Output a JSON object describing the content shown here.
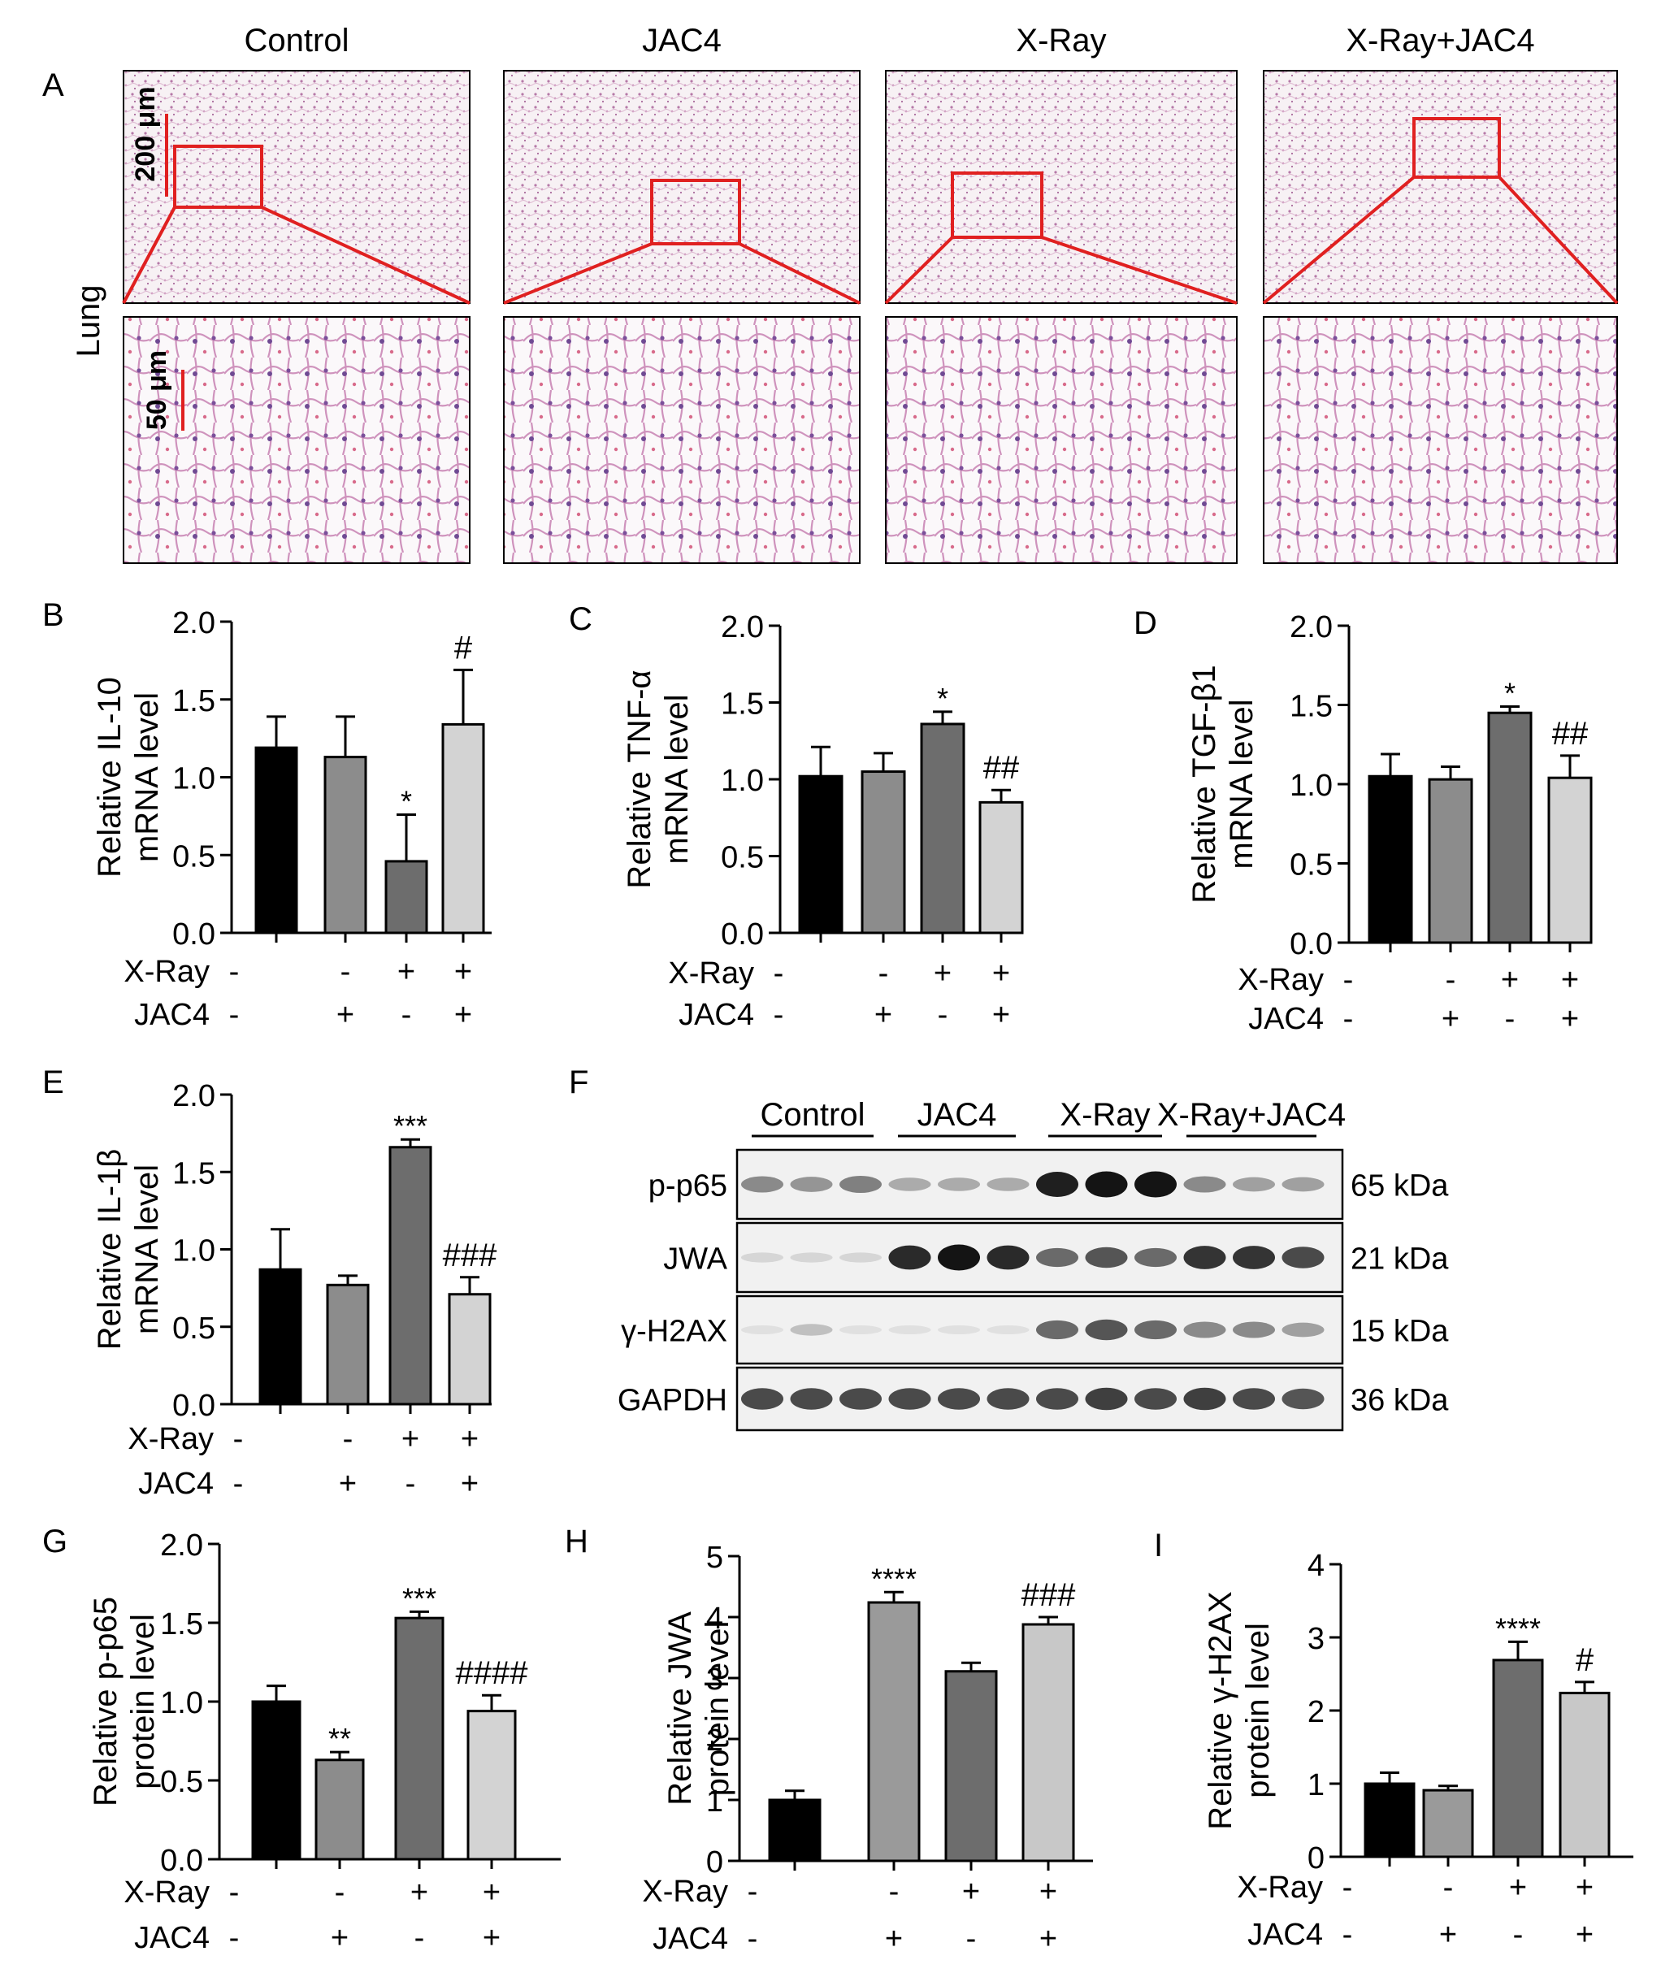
{
  "panel_letters": [
    "A",
    "B",
    "C",
    "D",
    "E",
    "F",
    "G",
    "H",
    "I"
  ],
  "histology": {
    "group_labels": [
      "Control",
      "JAC4",
      "X-Ray",
      "X-Ray+JAC4"
    ],
    "tissue_label": "Lung",
    "scale_top": "200 μm",
    "scale_bottom": "50 μm"
  },
  "treatment_rows": {
    "xray_label": "X-Ray",
    "jac4_label": "JAC4",
    "xray_signs": [
      "-",
      "-",
      "+",
      "+"
    ],
    "jac4_signs": [
      "-",
      "+",
      "-",
      "+"
    ]
  },
  "western_blot": {
    "groups": [
      "Control",
      "JAC4",
      "X-Ray",
      "X-Ray+JAC4"
    ],
    "rows": [
      {
        "protein": "p-p65",
        "size": "65 kDa",
        "intensity": [
          0.45,
          0.4,
          0.5,
          0.3,
          0.3,
          0.3,
          0.95,
          1.0,
          1.0,
          0.45,
          0.35,
          0.35
        ]
      },
      {
        "protein": "JWA",
        "size": "21 kDa",
        "intensity": [
          0.1,
          0.1,
          0.1,
          0.9,
          1.0,
          0.9,
          0.6,
          0.7,
          0.6,
          0.85,
          0.85,
          0.75
        ]
      },
      {
        "protein": "γ-H2AX",
        "size": "15 kDa",
        "intensity": [
          0.05,
          0.2,
          0.05,
          0.05,
          0.05,
          0.05,
          0.6,
          0.7,
          0.6,
          0.45,
          0.45,
          0.35
        ]
      },
      {
        "protein": "GAPDH",
        "size": "36 kDa",
        "intensity": [
          0.75,
          0.75,
          0.75,
          0.75,
          0.75,
          0.75,
          0.75,
          0.8,
          0.75,
          0.8,
          0.75,
          0.7
        ]
      }
    ]
  },
  "colors": {
    "bar_B": [
      "#000000",
      "#8c8c8c",
      "#6d6d6d",
      "#d3d3d3"
    ],
    "bar_C": [
      "#000000",
      "#8c8c8c",
      "#6d6d6d",
      "#d3d3d3"
    ],
    "bar_D": [
      "#000000",
      "#8c8c8c",
      "#6d6d6d",
      "#d3d3d3"
    ],
    "bar_E": [
      "#000000",
      "#8c8c8c",
      "#6d6d6d",
      "#d3d3d3"
    ],
    "bar_G": [
      "#000000",
      "#8c8c8c",
      "#6d6d6d",
      "#d3d3d3"
    ],
    "bar_H": [
      "#000000",
      "#9a9a9a",
      "#6d6d6d",
      "#c8c8c8"
    ],
    "bar_I": [
      "#000000",
      "#9a9a9a",
      "#6d6d6d",
      "#c8c8c8"
    ],
    "magnify_box": "#e02020",
    "scale_bar": "#e02020"
  },
  "chart_data": [
    {
      "panel": "B",
      "type": "bar",
      "categories": [
        "1",
        "2",
        "3",
        "4"
      ],
      "values": [
        1.19,
        1.13,
        0.46,
        1.34
      ],
      "errors": [
        0.2,
        0.26,
        0.3,
        0.35
      ],
      "annotations": [
        "",
        "",
        "*",
        "#"
      ],
      "ylabel_lines": [
        "Relative IL-10",
        "mRNA level"
      ],
      "ylim": [
        0,
        2.0
      ],
      "yticks": [
        "0.0",
        "0.5",
        "1.0",
        "1.5",
        "2.0"
      ]
    },
    {
      "panel": "C",
      "type": "bar",
      "categories": [
        "1",
        "2",
        "3",
        "4"
      ],
      "values": [
        1.02,
        1.05,
        1.36,
        0.85
      ],
      "errors": [
        0.19,
        0.12,
        0.08,
        0.08
      ],
      "annotations": [
        "",
        "",
        "*",
        "##"
      ],
      "ylabel_lines": [
        "Relative TNF-α",
        "mRNA level"
      ],
      "ylim": [
        0,
        2.0
      ],
      "yticks": [
        "0.0",
        "0.5",
        "1.0",
        "1.5",
        "2.0"
      ]
    },
    {
      "panel": "D",
      "type": "bar",
      "categories": [
        "1",
        "2",
        "3",
        "4"
      ],
      "values": [
        1.05,
        1.03,
        1.45,
        1.04
      ],
      "errors": [
        0.14,
        0.08,
        0.04,
        0.14
      ],
      "annotations": [
        "",
        "",
        "*",
        "##"
      ],
      "ylabel_lines": [
        "Relative TGF-β1",
        "mRNA level"
      ],
      "ylim": [
        0,
        2.0
      ],
      "yticks": [
        "0.0",
        "0.5",
        "1.0",
        "1.5",
        "2.0"
      ]
    },
    {
      "panel": "E",
      "type": "bar",
      "categories": [
        "1",
        "2",
        "3",
        "4"
      ],
      "values": [
        0.87,
        0.77,
        1.66,
        0.71
      ],
      "errors": [
        0.26,
        0.06,
        0.05,
        0.11
      ],
      "annotations": [
        "",
        "",
        "***",
        "###"
      ],
      "ylabel_lines": [
        "Relative IL-1β",
        "mRNA level"
      ],
      "ylim": [
        0,
        2.0
      ],
      "yticks": [
        "0.0",
        "0.5",
        "1.0",
        "1.5",
        "2.0"
      ]
    },
    {
      "panel": "G",
      "type": "bar",
      "categories": [
        "1",
        "2",
        "3",
        "4"
      ],
      "values": [
        1.0,
        0.63,
        1.53,
        0.94
      ],
      "errors": [
        0.1,
        0.05,
        0.04,
        0.1
      ],
      "annotations": [
        "",
        "**",
        "***",
        "####"
      ],
      "ylabel_lines": [
        "Relative p-p65",
        "protein level"
      ],
      "ylim": [
        0,
        2.0
      ],
      "yticks": [
        "0.0",
        "0.5",
        "1.0",
        "1.5",
        "2.0"
      ]
    },
    {
      "panel": "H",
      "type": "bar",
      "categories": [
        "1",
        "2",
        "3",
        "4"
      ],
      "values": [
        1.0,
        4.24,
        3.11,
        3.88
      ],
      "errors": [
        0.15,
        0.17,
        0.14,
        0.12
      ],
      "annotations": [
        "",
        "****",
        "",
        "###"
      ],
      "ylabel_lines": [
        "Relative JWA",
        "protein level"
      ],
      "ylim": [
        0,
        5
      ],
      "yticks": [
        "0",
        "1",
        "2",
        "3",
        "4",
        "5"
      ]
    },
    {
      "panel": "I",
      "type": "bar",
      "categories": [
        "1",
        "2",
        "3",
        "4"
      ],
      "values": [
        1.0,
        0.91,
        2.69,
        2.24
      ],
      "errors": [
        0.15,
        0.06,
        0.25,
        0.15
      ],
      "annotations": [
        "",
        "",
        "****",
        "#"
      ],
      "ylabel_lines": [
        "Relative γ-H2AX",
        "protein level"
      ],
      "ylim": [
        0,
        4
      ],
      "yticks": [
        "0",
        "1",
        "2",
        "3",
        "4"
      ]
    }
  ]
}
